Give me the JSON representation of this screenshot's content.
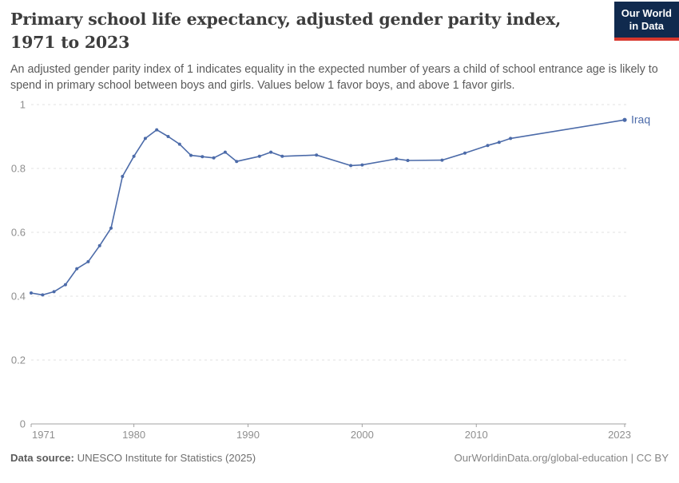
{
  "header": {
    "title": "Primary school life expectancy, adjusted gender parity index, 1971 to 2023",
    "subtitle": "An adjusted gender parity index of 1 indicates equality in the expected number of years a child of school entrance age is likely to spend in primary school between boys and girls. Values below 1 favor boys, and above 1 favor girls.",
    "logo": {
      "line1": "Our World",
      "line2": "in Data"
    }
  },
  "chart_data": {
    "type": "line",
    "title": "Primary school life expectancy, adjusted gender parity index",
    "entity_label": "Iraq",
    "series": [
      {
        "name": "Iraq",
        "points": [
          [
            1971,
            0.41
          ],
          [
            1972,
            0.404
          ],
          [
            1973,
            0.414
          ],
          [
            1974,
            0.436
          ],
          [
            1975,
            0.486
          ],
          [
            1976,
            0.508
          ],
          [
            1977,
            0.558
          ],
          [
            1978,
            0.613
          ],
          [
            1979,
            0.775
          ],
          [
            1980,
            0.838
          ],
          [
            1981,
            0.894
          ],
          [
            1982,
            0.921
          ],
          [
            1983,
            0.9
          ],
          [
            1984,
            0.876
          ],
          [
            1985,
            0.841
          ],
          [
            1986,
            0.837
          ],
          [
            1987,
            0.833
          ],
          [
            1988,
            0.851
          ],
          [
            1989,
            0.822
          ],
          [
            1991,
            0.838
          ],
          [
            1992,
            0.851
          ],
          [
            1993,
            0.838
          ],
          [
            1996,
            0.842
          ],
          [
            1999,
            0.809
          ],
          [
            2000,
            0.811
          ],
          [
            2003,
            0.83
          ],
          [
            2004,
            0.825
          ],
          [
            2007,
            0.826
          ],
          [
            2009,
            0.848
          ],
          [
            2011,
            0.872
          ],
          [
            2012,
            0.882
          ],
          [
            2013,
            0.894
          ],
          [
            2023,
            0.952
          ]
        ]
      }
    ],
    "xlim": [
      1971,
      2023
    ],
    "ylim": [
      0,
      1
    ],
    "xticks": [
      {
        "value": 1971,
        "label": "1971"
      },
      {
        "value": 1980,
        "label": "1980"
      },
      {
        "value": 1990,
        "label": "1990"
      },
      {
        "value": 2000,
        "label": "2000"
      },
      {
        "value": 2010,
        "label": "2010"
      },
      {
        "value": 2023,
        "label": "2023"
      }
    ],
    "yticks": [
      {
        "value": 0,
        "label": "0"
      },
      {
        "value": 0.2,
        "label": "0.2"
      },
      {
        "value": 0.4,
        "label": "0.4"
      },
      {
        "value": 0.6,
        "label": "0.6"
      },
      {
        "value": 0.8,
        "label": "0.8"
      },
      {
        "value": 1,
        "label": "1"
      }
    ],
    "grid": "horizontal-dashed",
    "legend_position": "end-of-line",
    "colors": {
      "line": "#4c6ba9",
      "grid": "#e0e0e0",
      "axis": "#a1a1a1",
      "tick_text": "#8f8f8f"
    }
  },
  "footer": {
    "source_label": "Data source:",
    "source_value": "UNESCO Institute for Statistics (2025)",
    "rights": "OurWorldinData.org/global-education | CC BY"
  }
}
